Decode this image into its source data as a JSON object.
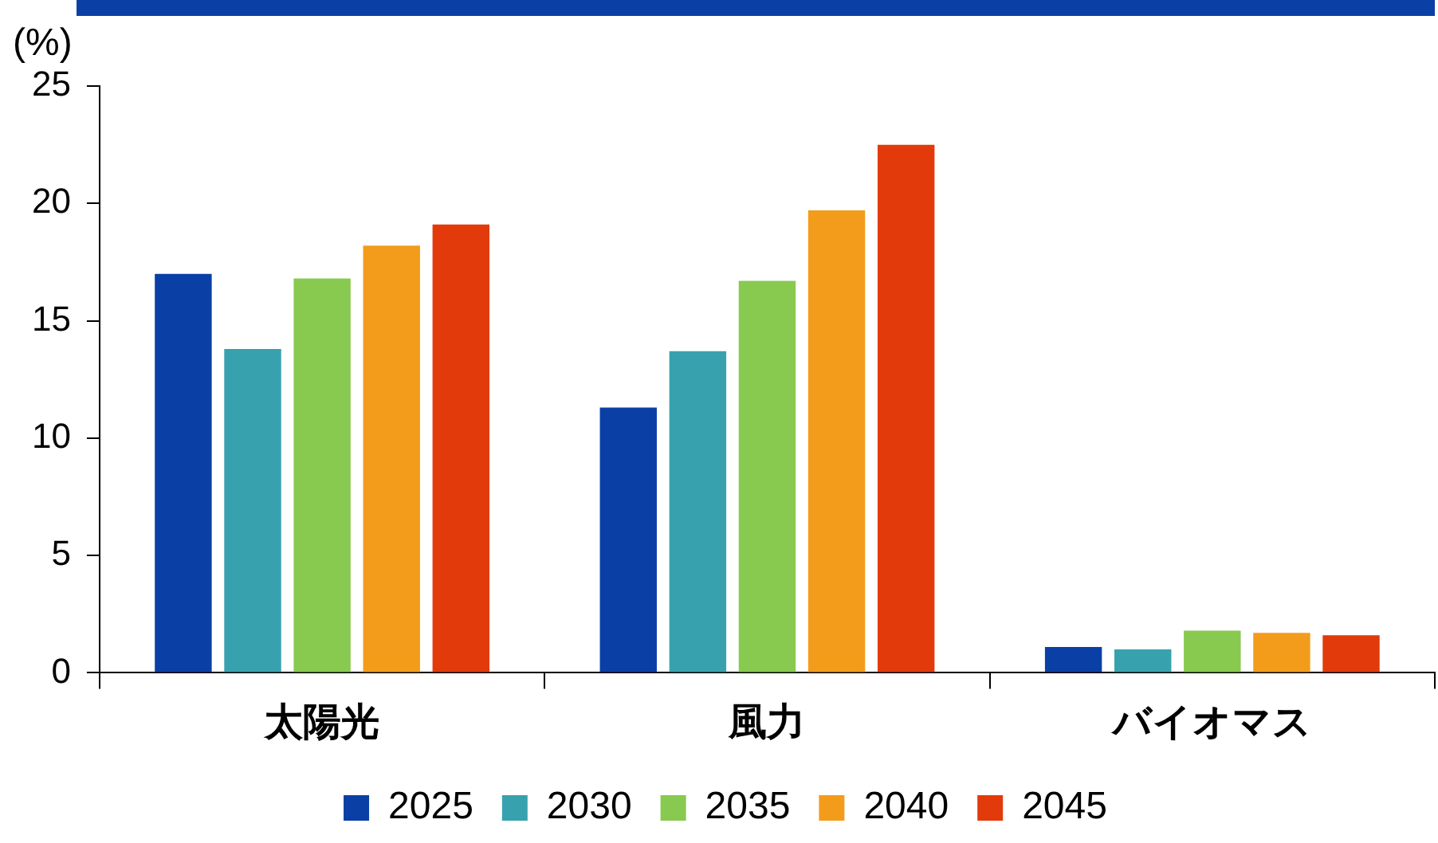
{
  "chart_data": {
    "type": "bar",
    "ylabel": "(%)",
    "categories": [
      "太陽光",
      "風力",
      "バイオマス"
    ],
    "series": [
      {
        "name": "2025",
        "color": "#0a3fa6",
        "values": [
          17.0,
          11.3,
          1.1
        ]
      },
      {
        "name": "2030",
        "color": "#37a2ae",
        "values": [
          13.8,
          13.7,
          1.0
        ]
      },
      {
        "name": "2035",
        "color": "#88c94f",
        "values": [
          16.8,
          16.7,
          1.8
        ]
      },
      {
        "name": "2040",
        "color": "#f39c1b",
        "values": [
          18.2,
          19.7,
          1.7
        ]
      },
      {
        "name": "2045",
        "color": "#e23a0a",
        "values": [
          19.1,
          22.5,
          1.6
        ]
      }
    ],
    "ylim": [
      0,
      25
    ],
    "yticks": [
      0,
      5,
      10,
      15,
      20,
      25
    ],
    "grid": false,
    "legend": "bottom"
  }
}
